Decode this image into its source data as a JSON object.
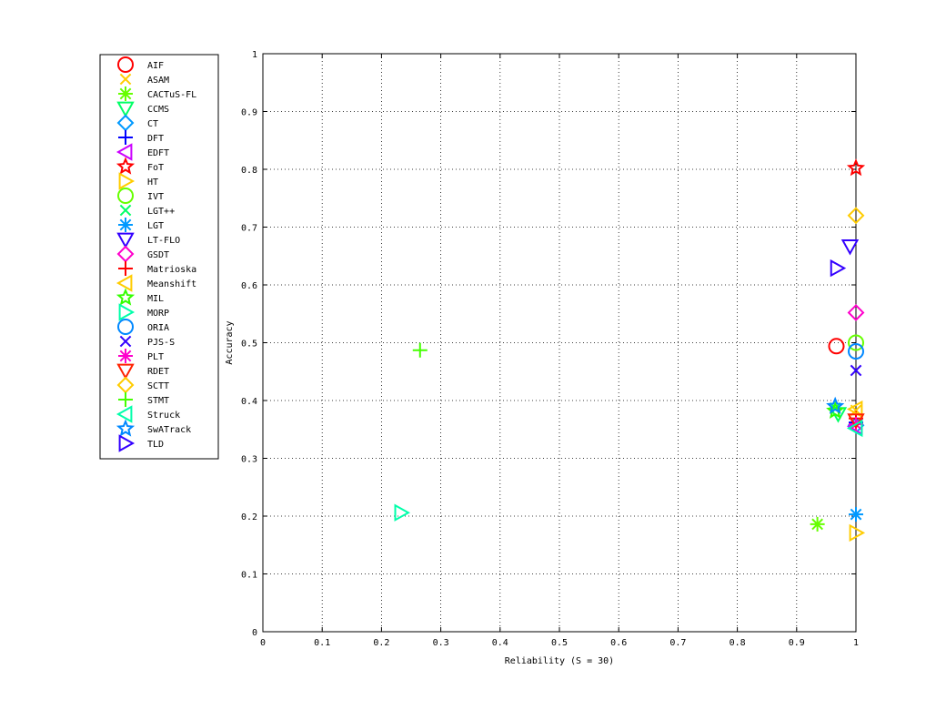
{
  "chart_data": {
    "type": "scatter",
    "xlabel": "Reliability (S = 30)",
    "ylabel": "Accuracy",
    "xlim": [
      0,
      1
    ],
    "ylim": [
      0,
      1
    ],
    "xticks": [
      "0",
      "0.1",
      "0.2",
      "0.3",
      "0.4",
      "0.5",
      "0.6",
      "0.7",
      "0.8",
      "0.9",
      "1"
    ],
    "yticks": [
      "0",
      "0.1",
      "0.2",
      "0.3",
      "0.4",
      "0.5",
      "0.6",
      "0.7",
      "0.8",
      "0.9",
      "1"
    ],
    "grid": true,
    "legend_position": "outside-left",
    "series": [
      {
        "name": "AIF",
        "marker": "circle",
        "color": "#ff0000",
        "x": 0.967,
        "y": 0.494
      },
      {
        "name": "ASAM",
        "marker": "x",
        "color": "#ffcc00",
        "x": 1.0,
        "y": 0.383
      },
      {
        "name": "CACTuS-FL",
        "marker": "asterisk",
        "color": "#66ff00",
        "x": 0.935,
        "y": 0.186
      },
      {
        "name": "CCMS",
        "marker": "triangle-down",
        "color": "#00ff66",
        "x": 0.97,
        "y": 0.377
      },
      {
        "name": "CT",
        "marker": "diamond",
        "color": "#0099ff",
        "x": 1.0,
        "y": 0.357
      },
      {
        "name": "DFT",
        "marker": "plus",
        "color": "#0000ff",
        "x": 1.0,
        "y": 0.362
      },
      {
        "name": "EDFT",
        "marker": "triangle-left",
        "color": "#cc00ff",
        "x": 1.0,
        "y": 0.355
      },
      {
        "name": "FoT",
        "marker": "star",
        "color": "#ff0000",
        "x": 1.0,
        "y": 0.802
      },
      {
        "name": "HT",
        "marker": "triangle-right",
        "color": "#ffcc00",
        "x": 1.0,
        "y": 0.171
      },
      {
        "name": "IVT",
        "marker": "circle",
        "color": "#66ff00",
        "x": 1.0,
        "y": 0.5
      },
      {
        "name": "LGT++",
        "marker": "x",
        "color": "#00ff66",
        "x": 0.965,
        "y": 0.387
      },
      {
        "name": "LGT",
        "marker": "asterisk",
        "color": "#0099ff",
        "x": 1.0,
        "y": 0.203
      },
      {
        "name": "LT-FLO",
        "marker": "triangle-down",
        "color": "#3300ff",
        "x": 0.99,
        "y": 0.667
      },
      {
        "name": "GSDT",
        "marker": "diamond",
        "color": "#ff00cc",
        "x": 1.0,
        "y": 0.552
      },
      {
        "name": "Matrioska",
        "marker": "plus",
        "color": "#ff0000",
        "x": 1.0,
        "y": 0.369
      },
      {
        "name": "Meanshift",
        "marker": "triangle-left",
        "color": "#ffcc00",
        "x": 1.0,
        "y": 0.385
      },
      {
        "name": "MIL",
        "marker": "star",
        "color": "#33ff00",
        "x": 0.965,
        "y": 0.382
      },
      {
        "name": "MORP",
        "marker": "triangle-right",
        "color": "#00ffaa",
        "x": 0.233,
        "y": 0.206
      },
      {
        "name": "ORIA",
        "marker": "circle",
        "color": "#0088ff",
        "x": 1.0,
        "y": 0.485
      },
      {
        "name": "PJS-S",
        "marker": "x",
        "color": "#3300ff",
        "x": 1.0,
        "y": 0.452
      },
      {
        "name": "PLT",
        "marker": "asterisk",
        "color": "#ff00cc",
        "x": 1.0,
        "y": 0.359
      },
      {
        "name": "RDET",
        "marker": "triangle-down",
        "color": "#ff2200",
        "x": 1.0,
        "y": 0.366
      },
      {
        "name": "SCTT",
        "marker": "diamond",
        "color": "#ffcc00",
        "x": 1.0,
        "y": 0.72
      },
      {
        "name": "STMT",
        "marker": "plus",
        "color": "#44ff00",
        "x": 0.265,
        "y": 0.487
      },
      {
        "name": "Struck",
        "marker": "triangle-left",
        "color": "#00ffaa",
        "x": 1.0,
        "y": 0.352
      },
      {
        "name": "SwATrack",
        "marker": "star",
        "color": "#0088ff",
        "x": 0.965,
        "y": 0.39
      },
      {
        "name": "TLD",
        "marker": "triangle-right",
        "color": "#3300ff",
        "x": 0.968,
        "y": 0.629
      }
    ]
  }
}
